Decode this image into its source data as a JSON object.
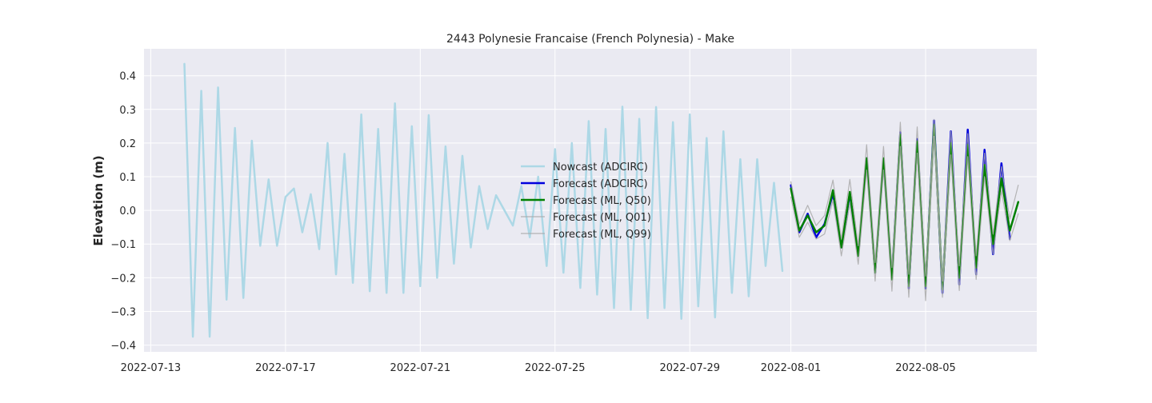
{
  "chart_data": {
    "type": "line",
    "title": "2443 Polynesie Francaise (French Polynesia) - Make",
    "xlabel": "",
    "ylabel": "Elevation (m)",
    "x_axis_type": "date",
    "x_ticks": [
      "2022-07-13",
      "2022-07-17",
      "2022-07-21",
      "2022-07-25",
      "2022-07-29",
      "2022-08-01",
      "2022-08-05"
    ],
    "y_ticks": [
      0.4,
      0.3,
      0.2,
      0.1,
      0.0,
      -0.1,
      -0.2,
      -0.3,
      -0.4
    ],
    "y_tick_labels": [
      "0.4",
      "0.3",
      "0.2",
      "0.1",
      "0.0",
      "−0.1",
      "−0.2",
      "−0.3",
      "−0.4"
    ],
    "xlim": [
      "2022-07-12T19:12",
      "2022-08-08T07:12"
    ],
    "ylim": [
      -0.42,
      0.48
    ],
    "grid": true,
    "legend_position": "center",
    "series": [
      {
        "name": "Nowcast (ADCIRC)",
        "color": "#add8e6",
        "line_width": 2.5,
        "points": [
          [
            "2022-07-14T00:00",
            0.435
          ],
          [
            "2022-07-14T06:00",
            -0.375
          ],
          [
            "2022-07-14T12:00",
            0.355
          ],
          [
            "2022-07-14T18:00",
            -0.375
          ],
          [
            "2022-07-15T00:00",
            0.365
          ],
          [
            "2022-07-15T06:00",
            -0.265
          ],
          [
            "2022-07-15T12:00",
            0.245
          ],
          [
            "2022-07-15T18:00",
            -0.26
          ],
          [
            "2022-07-16T00:00",
            0.207
          ],
          [
            "2022-07-16T06:00",
            -0.105
          ],
          [
            "2022-07-16T12:00",
            0.092
          ],
          [
            "2022-07-16T18:00",
            -0.105
          ],
          [
            "2022-07-17T00:00",
            0.04
          ],
          [
            "2022-07-17T06:00",
            0.065
          ],
          [
            "2022-07-17T12:00",
            -0.065
          ],
          [
            "2022-07-17T18:00",
            0.048
          ],
          [
            "2022-07-18T00:00",
            -0.115
          ],
          [
            "2022-07-18T06:00",
            0.2
          ],
          [
            "2022-07-18T12:00",
            -0.19
          ],
          [
            "2022-07-18T18:00",
            0.168
          ],
          [
            "2022-07-19T00:00",
            -0.215
          ],
          [
            "2022-07-19T06:00",
            0.285
          ],
          [
            "2022-07-19T12:00",
            -0.24
          ],
          [
            "2022-07-19T18:00",
            0.242
          ],
          [
            "2022-07-20T00:00",
            -0.245
          ],
          [
            "2022-07-20T06:00",
            0.318
          ],
          [
            "2022-07-20T12:00",
            -0.245
          ],
          [
            "2022-07-20T18:00",
            0.25
          ],
          [
            "2022-07-21T00:00",
            -0.225
          ],
          [
            "2022-07-21T06:00",
            0.283
          ],
          [
            "2022-07-21T12:00",
            -0.2
          ],
          [
            "2022-07-21T18:00",
            0.19
          ],
          [
            "2022-07-22T00:00",
            -0.158
          ],
          [
            "2022-07-22T06:00",
            0.162
          ],
          [
            "2022-07-22T12:00",
            -0.11
          ],
          [
            "2022-07-22T18:00",
            0.072
          ],
          [
            "2022-07-23T00:00",
            -0.055
          ],
          [
            "2022-07-23T06:00",
            0.045
          ],
          [
            "2022-07-23T12:00",
            0.0
          ],
          [
            "2022-07-23T18:00",
            -0.045
          ],
          [
            "2022-07-24T00:00",
            0.072
          ],
          [
            "2022-07-24T06:00",
            -0.08
          ],
          [
            "2022-07-24T12:00",
            0.1
          ],
          [
            "2022-07-24T18:00",
            -0.165
          ],
          [
            "2022-07-25T00:00",
            0.182
          ],
          [
            "2022-07-25T06:00",
            -0.185
          ],
          [
            "2022-07-25T12:00",
            0.2
          ],
          [
            "2022-07-25T18:00",
            -0.23
          ],
          [
            "2022-07-26T00:00",
            0.265
          ],
          [
            "2022-07-26T06:00",
            -0.25
          ],
          [
            "2022-07-26T12:00",
            0.242
          ],
          [
            "2022-07-26T18:00",
            -0.29
          ],
          [
            "2022-07-27T00:00",
            0.308
          ],
          [
            "2022-07-27T06:00",
            -0.295
          ],
          [
            "2022-07-27T12:00",
            0.272
          ],
          [
            "2022-07-27T18:00",
            -0.32
          ],
          [
            "2022-07-28T00:00",
            0.307
          ],
          [
            "2022-07-28T06:00",
            -0.29
          ],
          [
            "2022-07-28T12:00",
            0.262
          ],
          [
            "2022-07-28T18:00",
            -0.322
          ],
          [
            "2022-07-29T00:00",
            0.285
          ],
          [
            "2022-07-29T06:00",
            -0.285
          ],
          [
            "2022-07-29T12:00",
            0.215
          ],
          [
            "2022-07-29T18:00",
            -0.318
          ],
          [
            "2022-07-30T00:00",
            0.235
          ],
          [
            "2022-07-30T06:00",
            -0.245
          ],
          [
            "2022-07-30T12:00",
            0.152
          ],
          [
            "2022-07-30T18:00",
            -0.255
          ],
          [
            "2022-07-31T00:00",
            0.152
          ],
          [
            "2022-07-31T06:00",
            -0.165
          ],
          [
            "2022-07-31T12:00",
            0.082
          ],
          [
            "2022-07-31T18:00",
            -0.18
          ]
        ]
      },
      {
        "name": "Forecast (ADCIRC)",
        "color": "#0000dd",
        "line_width": 2.5,
        "points": [
          [
            "2022-08-01T00:00",
            0.075
          ],
          [
            "2022-08-01T06:00",
            -0.065
          ],
          [
            "2022-08-01T12:00",
            -0.01
          ],
          [
            "2022-08-01T18:00",
            -0.08
          ],
          [
            "2022-08-02T00:00",
            -0.04
          ],
          [
            "2022-08-02T06:00",
            0.05
          ],
          [
            "2022-08-02T12:00",
            -0.11
          ],
          [
            "2022-08-02T18:00",
            0.05
          ],
          [
            "2022-08-03T00:00",
            -0.135
          ],
          [
            "2022-08-03T06:00",
            0.155
          ],
          [
            "2022-08-03T12:00",
            -0.185
          ],
          [
            "2022-08-03T18:00",
            0.15
          ],
          [
            "2022-08-04T00:00",
            -0.2
          ],
          [
            "2022-08-04T06:00",
            0.232
          ],
          [
            "2022-08-04T12:00",
            -0.232
          ],
          [
            "2022-08-04T18:00",
            0.212
          ],
          [
            "2022-08-05T00:00",
            -0.232
          ],
          [
            "2022-08-05T06:00",
            0.267
          ],
          [
            "2022-08-05T12:00",
            -0.245
          ],
          [
            "2022-08-05T18:00",
            0.235
          ],
          [
            "2022-08-06T00:00",
            -0.22
          ],
          [
            "2022-08-06T06:00",
            0.24
          ],
          [
            "2022-08-06T12:00",
            -0.19
          ],
          [
            "2022-08-06T18:00",
            0.18
          ],
          [
            "2022-08-07T00:00",
            -0.13
          ],
          [
            "2022-08-07T06:00",
            0.14
          ],
          [
            "2022-08-07T12:00",
            -0.085
          ]
        ]
      },
      {
        "name": "Forecast (ML, Q50)",
        "color": "#008000",
        "line_width": 2.5,
        "points": [
          [
            "2022-08-01T00:00",
            0.065
          ],
          [
            "2022-08-01T06:00",
            -0.06
          ],
          [
            "2022-08-01T12:00",
            -0.015
          ],
          [
            "2022-08-01T18:00",
            -0.065
          ],
          [
            "2022-08-02T00:00",
            -0.045
          ],
          [
            "2022-08-02T06:00",
            0.06
          ],
          [
            "2022-08-02T12:00",
            -0.11
          ],
          [
            "2022-08-02T18:00",
            0.055
          ],
          [
            "2022-08-03T00:00",
            -0.135
          ],
          [
            "2022-08-03T06:00",
            0.155
          ],
          [
            "2022-08-03T12:00",
            -0.185
          ],
          [
            "2022-08-03T18:00",
            0.155
          ],
          [
            "2022-08-04T00:00",
            -0.205
          ],
          [
            "2022-08-04T06:00",
            0.225
          ],
          [
            "2022-08-04T12:00",
            -0.225
          ],
          [
            "2022-08-04T18:00",
            0.205
          ],
          [
            "2022-08-05T00:00",
            -0.225
          ],
          [
            "2022-08-05T06:00",
            0.255
          ],
          [
            "2022-08-05T12:00",
            -0.235
          ],
          [
            "2022-08-05T18:00",
            0.2
          ],
          [
            "2022-08-06T00:00",
            -0.2
          ],
          [
            "2022-08-06T06:00",
            0.195
          ],
          [
            "2022-08-06T12:00",
            -0.17
          ],
          [
            "2022-08-06T18:00",
            0.135
          ],
          [
            "2022-08-07T00:00",
            -0.1
          ],
          [
            "2022-08-07T06:00",
            0.095
          ],
          [
            "2022-08-07T12:00",
            -0.06
          ],
          [
            "2022-08-07T18:00",
            0.025
          ]
        ]
      },
      {
        "name": "Forecast (ML, Q01)",
        "color": "#a9a9a9",
        "line_width": 1.2,
        "points": [
          [
            "2022-08-01T00:00",
            0.04
          ],
          [
            "2022-08-01T06:00",
            -0.08
          ],
          [
            "2022-08-01T12:00",
            -0.035
          ],
          [
            "2022-08-01T18:00",
            -0.085
          ],
          [
            "2022-08-02T00:00",
            -0.07
          ],
          [
            "2022-08-02T06:00",
            0.03
          ],
          [
            "2022-08-02T12:00",
            -0.135
          ],
          [
            "2022-08-02T18:00",
            0.02
          ],
          [
            "2022-08-03T00:00",
            -0.16
          ],
          [
            "2022-08-03T06:00",
            0.12
          ],
          [
            "2022-08-03T12:00",
            -0.21
          ],
          [
            "2022-08-03T18:00",
            0.12
          ],
          [
            "2022-08-04T00:00",
            -0.24
          ],
          [
            "2022-08-04T06:00",
            0.19
          ],
          [
            "2022-08-04T12:00",
            -0.258
          ],
          [
            "2022-08-04T18:00",
            0.17
          ],
          [
            "2022-08-05T00:00",
            -0.268
          ],
          [
            "2022-08-05T06:00",
            0.22
          ],
          [
            "2022-08-05T12:00",
            -0.258
          ],
          [
            "2022-08-05T18:00",
            0.165
          ],
          [
            "2022-08-06T00:00",
            -0.238
          ],
          [
            "2022-08-06T06:00",
            0.16
          ],
          [
            "2022-08-06T12:00",
            -0.205
          ],
          [
            "2022-08-06T18:00",
            0.1
          ],
          [
            "2022-08-07T00:00",
            -0.13
          ],
          [
            "2022-08-07T06:00",
            0.06
          ],
          [
            "2022-08-07T12:00",
            -0.09
          ],
          [
            "2022-08-07T18:00",
            -0.01
          ]
        ]
      },
      {
        "name": "Forecast (ML, Q99)",
        "color": "#a9a9a9",
        "line_width": 1.2,
        "points": [
          [
            "2022-08-01T00:00",
            0.085
          ],
          [
            "2022-08-01T06:00",
            -0.04
          ],
          [
            "2022-08-01T12:00",
            0.015
          ],
          [
            "2022-08-01T18:00",
            -0.045
          ],
          [
            "2022-08-02T00:00",
            -0.015
          ],
          [
            "2022-08-02T06:00",
            0.09
          ],
          [
            "2022-08-02T12:00",
            -0.085
          ],
          [
            "2022-08-02T18:00",
            0.092
          ],
          [
            "2022-08-03T00:00",
            -0.105
          ],
          [
            "2022-08-03T06:00",
            0.195
          ],
          [
            "2022-08-03T12:00",
            -0.155
          ],
          [
            "2022-08-03T18:00",
            0.19
          ],
          [
            "2022-08-04T00:00",
            -0.17
          ],
          [
            "2022-08-04T06:00",
            0.262
          ],
          [
            "2022-08-04T12:00",
            -0.19
          ],
          [
            "2022-08-04T18:00",
            0.248
          ],
          [
            "2022-08-05T00:00",
            -0.195
          ],
          [
            "2022-08-05T06:00",
            0.27
          ],
          [
            "2022-08-05T12:00",
            -0.21
          ],
          [
            "2022-08-05T18:00",
            0.235
          ],
          [
            "2022-08-06T00:00",
            -0.165
          ],
          [
            "2022-08-06T06:00",
            0.228
          ],
          [
            "2022-08-06T12:00",
            -0.135
          ],
          [
            "2022-08-06T18:00",
            0.17
          ],
          [
            "2022-08-07T00:00",
            -0.07
          ],
          [
            "2022-08-07T06:00",
            0.13
          ],
          [
            "2022-08-07T12:00",
            -0.025
          ],
          [
            "2022-08-07T18:00",
            0.075
          ]
        ]
      }
    ]
  }
}
